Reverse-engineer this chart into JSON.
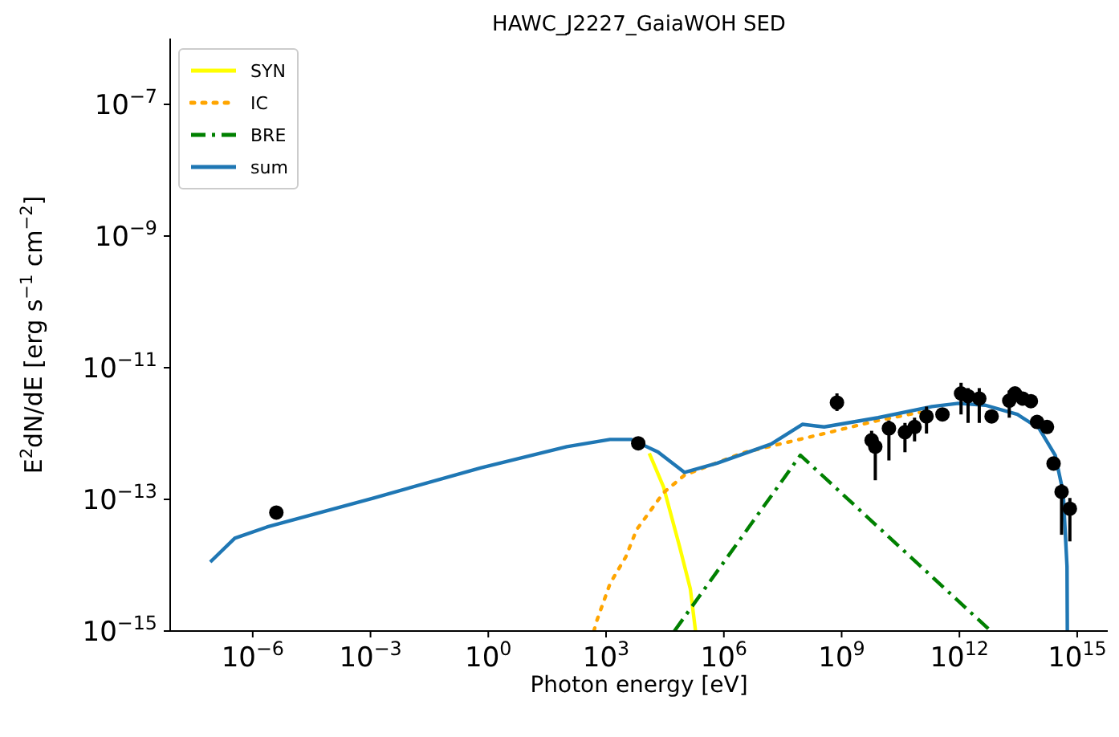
{
  "chart_data": {
    "type": "line",
    "title": "HAWC_J2227_GaiaWOH SED",
    "xlabel": "Photon energy [eV]",
    "ylabel": "E$^{2}$dN/dE [erg s$^{−1}$ cm$^{−2}$]",
    "log": "xy",
    "grid": false,
    "legend": "top left",
    "xlim": [
      7.9e-09,
      6000000000000000.0
    ],
    "ylim": [
      1e-15,
      1e-06
    ],
    "xticks": [
      {
        "value": 1e-06,
        "label": "10$^{−6}$"
      },
      {
        "value": 0.001,
        "label": "10$^{−3}$"
      },
      {
        "value": 1,
        "label": "10$^{0}$"
      },
      {
        "value": 1000.0,
        "label": "10$^{3}$"
      },
      {
        "value": 1000000.0,
        "label": "10$^{6}$"
      },
      {
        "value": 1000000000.0,
        "label": "10$^{9}$"
      },
      {
        "value": 1000000000000.0,
        "label": "10$^{12}$"
      },
      {
        "value": 1000000000000000.0,
        "label": "10$^{15}$"
      }
    ],
    "yticks": [
      {
        "value": 1e-15,
        "label": "10$^{−15}$"
      },
      {
        "value": 1e-13,
        "label": "10$^{−13}$"
      },
      {
        "value": 1e-11,
        "label": "10$^{−11}$"
      },
      {
        "value": 1e-09,
        "label": "10$^{−9}$"
      },
      {
        "value": 1e-07,
        "label": "10$^{−7}$"
      }
    ],
    "series": [
      {
        "name": "SYN",
        "color": "#ffff00",
        "line_style": "solid",
        "marker": "none",
        "x": [
          12600,
          29000,
          74000,
          140000,
          190000
        ],
        "values": [
          5.01e-13,
          1.55e-13,
          1.95e-14,
          4.37e-15,
          1e-15
        ]
      },
      {
        "name": "IC",
        "color": "#ffa500",
        "line_style": "dotted",
        "marker": "none",
        "x": [
          490,
          575,
          1260,
          3200,
          6000,
          29000,
          100000,
          3200000.0,
          360000000.0,
          8500000000.0,
          100000000000.0
        ],
        "values": [
          1e-15,
          1.41e-15,
          5.25e-15,
          1.35e-14,
          3.47e-14,
          1.26e-13,
          2.34e-13,
          5.13e-13,
          1e-12,
          1.58e-12,
          2.1e-12
        ]
      },
      {
        "name": "BRE",
        "color": "#008000",
        "line_style": "dashdot",
        "marker": "none",
        "x": [
          55000,
          89000000.0,
          6300000000000.0
        ],
        "values": [
          1e-15,
          4.68e-13,
          1e-15
        ]
      },
      {
        "name": "sum",
        "color": "#1f77b4",
        "line_style": "solid",
        "marker": "none",
        "x": [
          8.3e-08,
          3.5e-07,
          2.3e-06,
          0.0012,
          0.66,
          100,
          1260,
          4400,
          21000,
          100000,
          680000,
          16000000.0,
          100000000.0,
          360000000.0,
          8500000000.0,
          200000000000.0,
          950000000000.0,
          4600000000000.0,
          30000000000000.0,
          107000000000000.0,
          275000000000000.0,
          440000000000000.0,
          550000000000000.0,
          560000000000000.0
        ],
        "values": [
          1.12e-14,
          2.57e-14,
          3.8e-14,
          1.05e-13,
          3.02e-13,
          6.31e-13,
          8.13e-13,
          8.13e-13,
          5.25e-13,
          2.57e-13,
          3.55e-13,
          6.92e-13,
          1.38e-12,
          1.26e-12,
          1.74e-12,
          2.57e-12,
          2.88e-12,
          2.69e-12,
          1.95e-12,
          1.2e-12,
          4.68e-13,
          1.26e-13,
          9.55e-15,
          1e-15
        ]
      },
      {
        "type": "scatter",
        "color": "#000000",
        "marker": "circle",
        "x": [
          4e-06,
          6600,
          760000000.0,
          5800000000.0,
          7200000000.0,
          16000000000.0,
          41000000000.0,
          72000000000.0,
          145000000000.0,
          370000000000.0,
          1100000000000.0,
          1660000000000.0,
          3200000000000.0,
          6600000000000.0,
          18600000000000.0,
          26000000000000.0,
          41000000000000.0,
          66000000000000.0,
          95000000000000.0,
          170000000000000.0,
          250000000000000.0,
          400000000000000.0,
          650000000000000.0
        ],
        "values": [
          6.3e-14,
          7.1e-13,
          2.95e-12,
          7.9e-13,
          6.3e-13,
          1.2e-12,
          1.05e-12,
          1.26e-12,
          1.82e-12,
          1.95e-12,
          4.07e-12,
          3.7e-12,
          3.4e-12,
          1.82e-12,
          3.16e-12,
          4.07e-12,
          3.4e-12,
          3.1e-12,
          1.5e-12,
          1.26e-12,
          3.5e-13,
          1.3e-13,
          7.2e-14
        ],
        "errors": [
          null,
          null,
          [
            2.2e-12,
            4.07e-12
          ],
          [
            5.2e-13,
            1.1e-12
          ],
          [
            1.95e-13,
            8.3e-13
          ],
          [
            3.9e-13,
            1.58e-12
          ],
          [
            5.2e-13,
            1.45e-12
          ],
          [
            7.6e-13,
            1.74e-12
          ],
          [
            1e-12,
            2.57e-12
          ],
          null,
          [
            1.95e-12,
            5.9e-12
          ],
          [
            1.45e-12,
            4.9e-12
          ],
          [
            1.45e-12,
            4.9e-12
          ],
          null,
          [
            1.74e-12,
            4.5e-12
          ],
          null,
          null,
          null,
          null,
          null,
          null,
          [
            2.9e-14,
            1.7e-13
          ],
          [
            2.3e-14,
            1.05e-13
          ]
        ]
      }
    ]
  }
}
